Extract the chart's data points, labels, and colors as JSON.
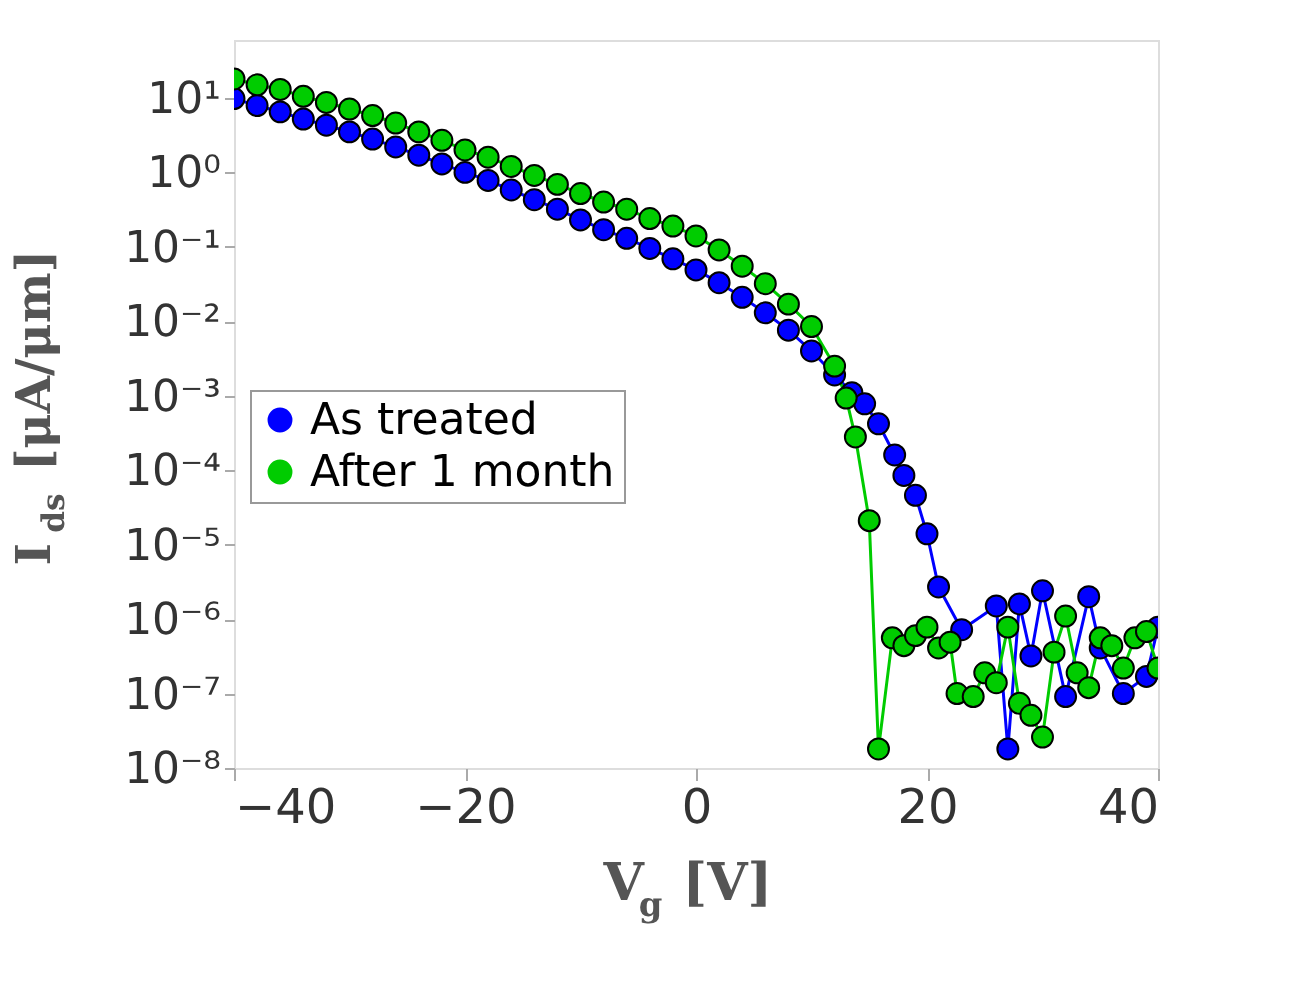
{
  "chart_data": {
    "type": "line",
    "xlabel": "V$_{g}$ [V]",
    "ylabel": "I$_{ds}$ [μA/μm]",
    "log": "y",
    "xlim": [
      -40,
      40
    ],
    "xticks": [
      -40,
      -20,
      0,
      20,
      40
    ],
    "ylim": [
      1e-08,
      60
    ],
    "yticks": [
      {
        "value": 10,
        "label": "10¹"
      },
      {
        "value": 1,
        "label": "10⁰"
      },
      {
        "value": 0.1,
        "label": "10⁻¹"
      },
      {
        "value": 0.01,
        "label": "10⁻²"
      },
      {
        "value": 0.001,
        "label": "10⁻³"
      },
      {
        "value": 0.0001,
        "label": "10⁻⁴"
      },
      {
        "value": 1e-05,
        "label": "10⁻⁵"
      },
      {
        "value": 1e-06,
        "label": "10⁻⁶"
      },
      {
        "value": 1e-07,
        "label": "10⁻⁷"
      },
      {
        "value": 1e-08,
        "label": "10⁻⁸"
      }
    ],
    "grid": false,
    "legend": "left",
    "marker": "circle",
    "line_style": "solid",
    "series": [
      {
        "name": "As treated",
        "color": "#0000ff",
        "x": [
          -40,
          -38,
          -36,
          -34,
          -32,
          -30,
          -28,
          -26,
          -24,
          -22,
          -20,
          -18,
          -16,
          -14,
          -12,
          -10,
          -8,
          -6,
          -4,
          -2,
          0,
          2,
          4,
          6,
          8,
          10,
          12,
          13.5,
          14.6,
          15.8,
          17.2,
          18,
          19,
          20,
          21,
          23,
          26,
          27,
          28,
          29,
          30,
          32,
          34,
          35,
          37,
          39,
          40
        ],
        "values": [
          9.8,
          7.9,
          6.5,
          5.2,
          4.3,
          3.5,
          2.8,
          2.2,
          1.7,
          1.3,
          1.0,
          0.78,
          0.58,
          0.43,
          0.32,
          0.23,
          0.17,
          0.13,
          0.095,
          0.069,
          0.049,
          0.033,
          0.021,
          0.013,
          0.0076,
          0.004,
          0.0019,
          0.0011,
          0.00078,
          0.00042,
          0.00016,
          8.5e-05,
          4.6e-05,
          1.4e-05,
          2.7e-06,
          7.2e-07,
          1.5e-06,
          1.8e-08,
          1.6e-06,
          3.2e-07,
          2.4e-06,
          9.1e-08,
          2e-06,
          4.1e-07,
          1e-07,
          1.7e-07,
          7.8e-07
        ]
      },
      {
        "name": "After 1 month",
        "color": "#00cc00",
        "x": [
          -40,
          -38,
          -36,
          -34,
          -32,
          -30,
          -28,
          -26,
          -24,
          -22,
          -20,
          -18,
          -16,
          -14,
          -12,
          -10,
          -8,
          -6,
          -4,
          -2,
          0,
          2,
          4,
          6,
          8,
          10,
          12,
          13,
          13.8,
          15,
          15.8,
          17,
          18,
          19,
          20,
          21,
          22,
          22.6,
          24,
          25,
          26,
          27,
          28,
          29,
          30,
          31,
          32,
          33,
          34,
          35,
          36,
          37,
          38,
          39,
          40
        ],
        "values": [
          18,
          15,
          13,
          10.5,
          8.7,
          7.1,
          5.8,
          4.6,
          3.5,
          2.7,
          2.0,
          1.6,
          1.2,
          0.91,
          0.69,
          0.52,
          0.4,
          0.32,
          0.24,
          0.19,
          0.14,
          0.091,
          0.055,
          0.032,
          0.017,
          0.0085,
          0.0025,
          0.00093,
          0.00028,
          2.1e-05,
          1.8e-08,
          5.6e-07,
          4.4e-07,
          6e-07,
          7.8e-07,
          4.1e-07,
          4.9e-07,
          1e-07,
          9.1e-08,
          1.9e-07,
          1.4e-07,
          7.8e-07,
          7.4e-08,
          5.1e-08,
          2.6e-08,
          3.6e-07,
          1.1e-06,
          1.9e-07,
          1.2e-07,
          5.6e-07,
          4.4e-07,
          2.2e-07,
          5.6e-07,
          6.8e-07,
          2.2e-07
        ]
      }
    ]
  }
}
